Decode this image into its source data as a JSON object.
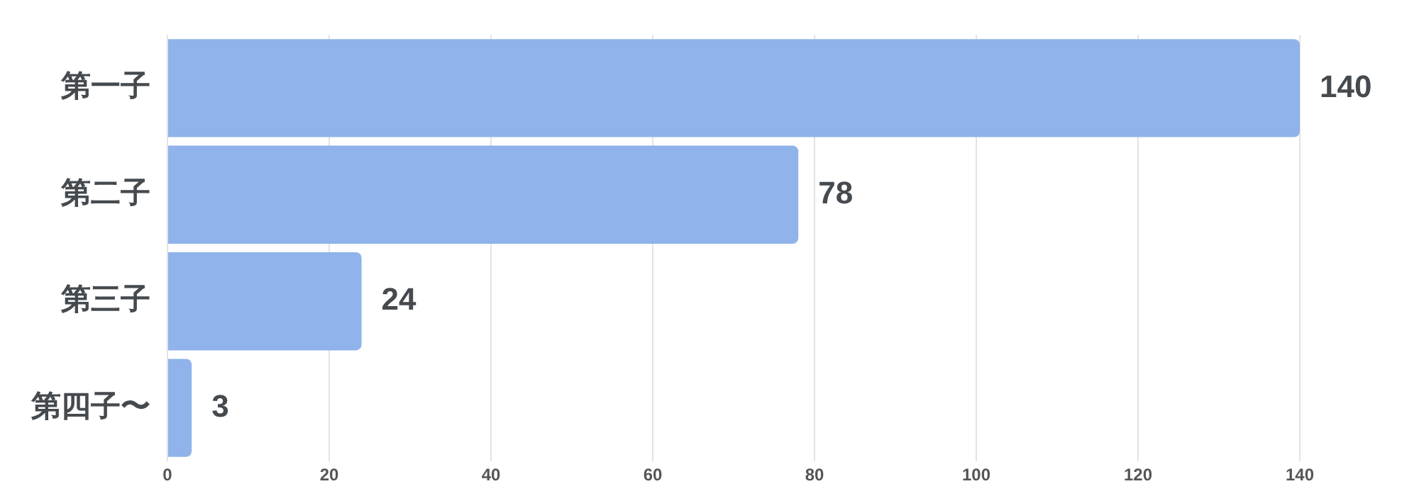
{
  "chart_data": {
    "type": "bar",
    "orientation": "horizontal",
    "categories": [
      "第一子",
      "第二子",
      "第三子",
      "第四子〜"
    ],
    "values": [
      140,
      78,
      24,
      3
    ],
    "color": "#8fb3ea",
    "xlim": [
      0,
      140
    ],
    "xticks": [
      0,
      20,
      40,
      60,
      80,
      100,
      120,
      140
    ],
    "grid": "x",
    "legend": false,
    "data_labels": true
  }
}
